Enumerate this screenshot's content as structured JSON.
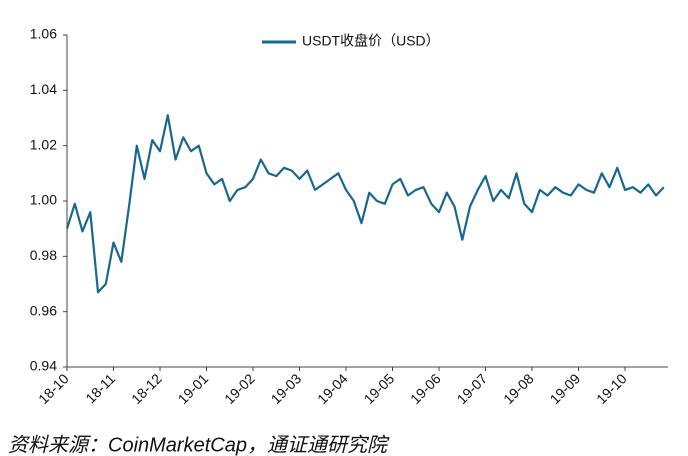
{
  "chart_data": {
    "type": "line",
    "source": "资料来源：CoinMarketCap，通证通研究院",
    "categories": [
      "18-10",
      null,
      null,
      null,
      null,
      null,
      "18-11",
      null,
      null,
      null,
      null,
      null,
      "18-12",
      null,
      null,
      null,
      null,
      null,
      "19-01",
      null,
      null,
      null,
      null,
      null,
      "19-02",
      null,
      null,
      null,
      null,
      null,
      "19-03",
      null,
      null,
      null,
      null,
      null,
      "19-04",
      null,
      null,
      null,
      null,
      null,
      "19-05",
      null,
      null,
      null,
      null,
      null,
      "19-06",
      null,
      null,
      null,
      null,
      null,
      "19-07",
      null,
      null,
      null,
      null,
      null,
      "19-08",
      null,
      null,
      null,
      null,
      null,
      "19-09",
      null,
      null,
      null,
      null,
      null,
      "19-10",
      null,
      null,
      null,
      null,
      null
    ],
    "series": [
      {
        "name": "USDT收盘价（USD）",
        "color": "#17688f",
        "values": [
          0.99,
          0.999,
          0.989,
          0.996,
          0.967,
          0.97,
          0.985,
          0.978,
          0.998,
          1.02,
          1.008,
          1.022,
          1.018,
          1.031,
          1.015,
          1.023,
          1.018,
          1.02,
          1.01,
          1.006,
          1.008,
          1.0,
          1.004,
          1.005,
          1.008,
          1.015,
          1.01,
          1.009,
          1.012,
          1.011,
          1.008,
          1.011,
          1.004,
          1.006,
          1.008,
          1.01,
          1.004,
          1.0,
          0.992,
          1.003,
          1.0,
          0.999,
          1.006,
          1.008,
          1.002,
          1.004,
          1.005,
          0.999,
          0.996,
          1.003,
          0.998,
          0.986,
          0.998,
          1.004,
          1.009,
          1.0,
          1.004,
          1.001,
          1.01,
          0.999,
          0.996,
          1.004,
          1.002,
          1.005,
          1.003,
          1.002,
          1.006,
          1.004,
          1.003,
          1.01,
          1.005,
          1.012,
          1.004,
          1.005,
          1.003,
          1.006,
          1.002,
          1.005
        ]
      }
    ],
    "ylim": [
      0.94,
      1.06
    ],
    "yticks": [
      0.94,
      0.96,
      0.98,
      {
        "value": 1,
        "label": "1.00"
      },
      1.02,
      1.04,
      1.06
    ],
    "legend": "top"
  }
}
